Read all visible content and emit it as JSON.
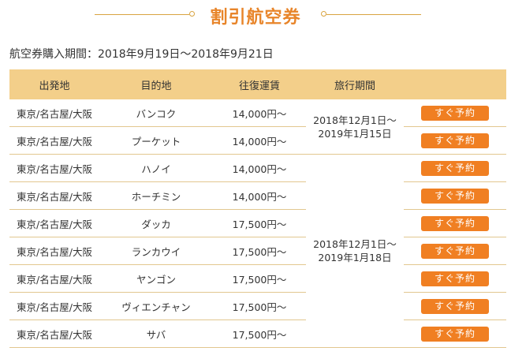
{
  "title": "割引航空券",
  "purchase_period": "航空券購入期間：2018年9月19日～2018年9月21日",
  "table": {
    "headers": [
      "出発地",
      "目的地",
      "往復運賃",
      "旅行期間",
      ""
    ],
    "travel_periods": [
      {
        "line1": "2018年12月1日～",
        "line2": "2019年1月15日"
      },
      {
        "line1": "2018年12月1日～",
        "line2": "2019年1月18日"
      }
    ],
    "button_label": "すぐ予約",
    "rows": [
      {
        "origin": "東京/名古屋/大阪",
        "destination": "バンコク",
        "fare": "14,000円～"
      },
      {
        "origin": "東京/名古屋/大阪",
        "destination": "プーケット",
        "fare": "14,000円～"
      },
      {
        "origin": "東京/名古屋/大阪",
        "destination": "ハノイ",
        "fare": "14,000円～"
      },
      {
        "origin": "東京/名古屋/大阪",
        "destination": "ホーチミン",
        "fare": "14,000円～"
      },
      {
        "origin": "東京/名古屋/大阪",
        "destination": "ダッカ",
        "fare": "17,500円～"
      },
      {
        "origin": "東京/名古屋/大阪",
        "destination": "ランカウイ",
        "fare": "17,500円～"
      },
      {
        "origin": "東京/名古屋/大阪",
        "destination": "ヤンゴン",
        "fare": "17,500円～"
      },
      {
        "origin": "東京/名古屋/大阪",
        "destination": "ヴィエンチャン",
        "fare": "17,500円～"
      },
      {
        "origin": "東京/名古屋/大阪",
        "destination": "サバ",
        "fare": "17,500円～"
      }
    ]
  },
  "colors": {
    "accent": "#e8852a",
    "button": "#f07f22",
    "header_bg": "#f3cf8a",
    "border": "#e2c78f"
  }
}
